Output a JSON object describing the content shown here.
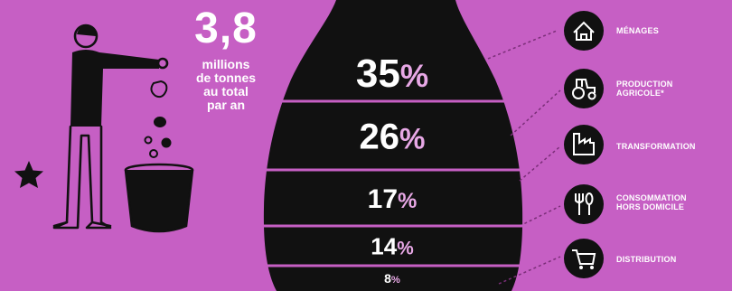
{
  "total": {
    "value": "3,8",
    "label_lines": [
      "millions",
      "de tonnes",
      "au total",
      "par an"
    ]
  },
  "colors": {
    "background": "#c65fc4",
    "drop": "#111111",
    "text": "#ffffff",
    "percent_sign": "#e8a8e6",
    "connector": "#7a2e78"
  },
  "chart_data": {
    "type": "bar",
    "categories": [
      "MÉNAGES",
      "PRODUCTION AGRICOLE*",
      "TRANSFORMATION",
      "CONSOMMATION HORS DOMICILE",
      "DISTRIBUTION"
    ],
    "values": [
      35,
      26,
      17,
      14,
      8
    ],
    "unit": "%"
  },
  "segments": [
    {
      "number": "35",
      "sign": "%"
    },
    {
      "number": "26",
      "sign": "%"
    },
    {
      "number": "17",
      "sign": "%"
    },
    {
      "number": "14",
      "sign": "%"
    },
    {
      "number": "8",
      "sign": "%"
    }
  ],
  "legend": [
    {
      "lines": [
        "MÉNAGES"
      ],
      "icon": "house-icon"
    },
    {
      "lines": [
        "PRODUCTION",
        "AGRICOLE*"
      ],
      "icon": "tractor-icon"
    },
    {
      "lines": [
        "TRANSFORMATION"
      ],
      "icon": "factory-icon"
    },
    {
      "lines": [
        "CONSOMMATION",
        "HORS DOMICILE"
      ],
      "icon": "fork-spoon-icon"
    },
    {
      "lines": [
        "DISTRIBUTION"
      ],
      "icon": "shopping-cart-icon"
    }
  ]
}
